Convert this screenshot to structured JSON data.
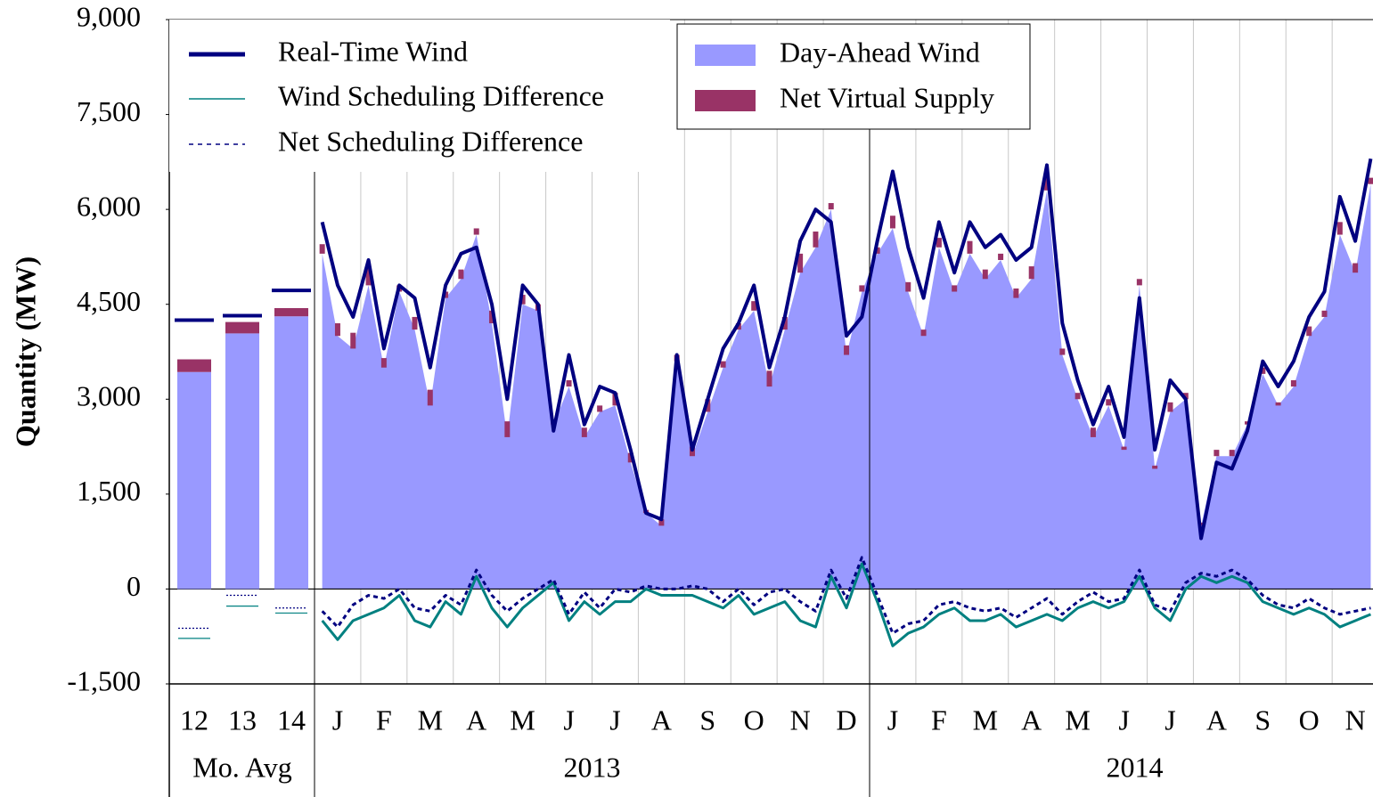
{
  "chart_data": {
    "type": "area",
    "y_label": "Quantity (MW)",
    "ylim": [
      -1500,
      9000
    ],
    "yticks": [
      {
        "value": -1500,
        "label": "-1,500"
      },
      0,
      {
        "value": 1500,
        "label": "1,500"
      },
      {
        "value": 3000,
        "label": "3,000"
      },
      {
        "value": 4500,
        "label": "4,500"
      },
      {
        "value": 6000,
        "label": "6,000"
      },
      {
        "value": 7500,
        "label": "7,500"
      },
      {
        "value": 9000,
        "label": "9,000"
      }
    ],
    "average_label": "Mo. Avg",
    "average_categories": [
      "12",
      "13",
      "14"
    ],
    "months": [
      "J",
      "F",
      "M",
      "A",
      "M",
      "J",
      "J",
      "A",
      "S",
      "O",
      "N",
      "D",
      "J",
      "F",
      "M",
      "A",
      "M",
      "J",
      "J",
      "A",
      "S",
      "O",
      "N"
    ],
    "years": [
      "2013",
      "2014"
    ],
    "series": [
      {
        "name": "Real-Time Wind",
        "color": "#000080",
        "style": "line",
        "average_values": [
          4250,
          4320,
          4720
        ],
        "values": [
          5800,
          4800,
          4300,
          5200,
          3800,
          4800,
          4600,
          3500,
          4800,
          5300,
          5400,
          4500,
          3000,
          4800,
          4500,
          2500,
          3700,
          2600,
          3200,
          3100,
          2200,
          1200,
          1100,
          3700,
          2200,
          3000,
          3800,
          4200,
          4800,
          3500,
          4300,
          5500,
          6000,
          5800,
          4000,
          4300,
          5500,
          6600,
          5400,
          4600,
          5800,
          5000,
          5800,
          5400,
          5600,
          5200,
          5400,
          6700,
          4200,
          3300,
          2600,
          3200,
          2400,
          4600,
          2200,
          3300,
          3000,
          800,
          2000,
          1900,
          2500,
          3600,
          3200,
          3600,
          4300,
          4700,
          6200,
          5500,
          6800
        ]
      },
      {
        "name": "Wind Scheduling Difference",
        "color": "#008080",
        "style": "line",
        "average_values": [
          -780,
          -270,
          -380
        ],
        "values": [
          -500,
          -800,
          -500,
          -400,
          -300,
          -100,
          -500,
          -600,
          -200,
          -400,
          200,
          -300,
          -600,
          -300,
          -100,
          100,
          -500,
          -200,
          -400,
          -200,
          -200,
          0,
          -100,
          -100,
          -100,
          -200,
          -300,
          -100,
          -400,
          -300,
          -200,
          -500,
          -600,
          200,
          -300,
          400,
          -200,
          -900,
          -700,
          -600,
          -400,
          -300,
          -500,
          -500,
          -400,
          -600,
          -500,
          -400,
          -500,
          -300,
          -200,
          -300,
          -200,
          200,
          -300,
          -500,
          0,
          200,
          100,
          200,
          100,
          -200,
          -300,
          -400,
          -300,
          -400,
          -600,
          -500,
          -400
        ]
      },
      {
        "name": "Net Scheduling Difference",
        "color": "#000080",
        "style": "dashed",
        "average_values": [
          -620,
          -100,
          -300
        ],
        "values": [
          -350,
          -600,
          -250,
          -100,
          -150,
          0,
          -300,
          -350,
          -100,
          -250,
          300,
          -100,
          -350,
          -150,
          0,
          150,
          -400,
          -50,
          -300,
          0,
          -50,
          50,
          0,
          0,
          50,
          0,
          -200,
          0,
          -250,
          -50,
          0,
          -200,
          -350,
          300,
          -150,
          500,
          -100,
          -700,
          -550,
          -500,
          -250,
          -200,
          -300,
          -350,
          -300,
          -450,
          -300,
          -150,
          -400,
          -200,
          -50,
          -200,
          -150,
          300,
          -250,
          -350,
          100,
          250,
          200,
          300,
          150,
          -100,
          -250,
          -300,
          -150,
          -300,
          -400,
          -350,
          -300
        ]
      },
      {
        "name": "Day-Ahead Wind",
        "color": "#9999ff",
        "style": "area",
        "average_values": [
          3430,
          4040,
          4310
        ],
        "values": [
          5300,
          4000,
          3800,
          4800,
          3500,
          4700,
          4100,
          2900,
          4600,
          4900,
          5600,
          4200,
          2400,
          4500,
          4400,
          2600,
          3200,
          2400,
          2800,
          2900,
          2000,
          1200,
          1000,
          3600,
          2100,
          2800,
          3500,
          4100,
          4400,
          3200,
          4100,
          5000,
          5400,
          6000,
          3700,
          4700,
          5300,
          5700,
          4700,
          4000,
          5400,
          4700,
          5300,
          4900,
          5200,
          4600,
          4900,
          6300,
          3700,
          3000,
          2400,
          2900,
          2200,
          4800,
          1900,
          2800,
          3000,
          1000,
          2100,
          2100,
          2600,
          3400,
          2900,
          3200,
          4000,
          4300,
          5600,
          5000,
          6400
        ]
      },
      {
        "name": "Net Virtual Supply",
        "color": "#993366",
        "style": "stack",
        "average_values": [
          200,
          180,
          130
        ],
        "values": [
          150,
          200,
          250,
          300,
          150,
          100,
          200,
          250,
          100,
          150,
          100,
          200,
          250,
          150,
          100,
          50,
          100,
          150,
          100,
          200,
          150,
          50,
          100,
          100,
          150,
          200,
          100,
          100,
          150,
          250,
          200,
          300,
          250,
          100,
          150,
          100,
          100,
          200,
          150,
          100,
          150,
          100,
          200,
          150,
          100,
          150,
          200,
          250,
          100,
          100,
          150,
          100,
          50,
          100,
          50,
          150,
          100,
          50,
          100,
          100,
          50,
          100,
          50,
          100,
          150,
          100,
          200,
          150,
          100
        ]
      }
    ]
  }
}
